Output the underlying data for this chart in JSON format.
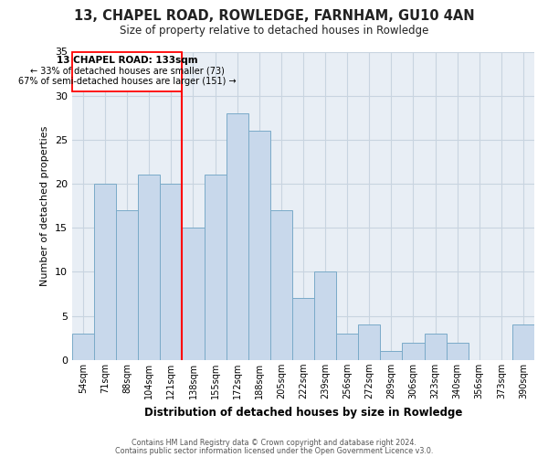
{
  "title": "13, CHAPEL ROAD, ROWLEDGE, FARNHAM, GU10 4AN",
  "subtitle": "Size of property relative to detached houses in Rowledge",
  "xlabel": "Distribution of detached houses by size in Rowledge",
  "ylabel": "Number of detached properties",
  "bar_color": "#c8d8eb",
  "bar_edge_color": "#7aaac8",
  "bins": [
    "54sqm",
    "71sqm",
    "88sqm",
    "104sqm",
    "121sqm",
    "138sqm",
    "155sqm",
    "172sqm",
    "188sqm",
    "205sqm",
    "222sqm",
    "239sqm",
    "256sqm",
    "272sqm",
    "289sqm",
    "306sqm",
    "323sqm",
    "340sqm",
    "356sqm",
    "373sqm",
    "390sqm"
  ],
  "counts": [
    3,
    20,
    17,
    21,
    20,
    15,
    21,
    28,
    26,
    17,
    7,
    10,
    3,
    4,
    1,
    2,
    3,
    2,
    0,
    0,
    4
  ],
  "ylim": [
    0,
    35
  ],
  "yticks": [
    0,
    5,
    10,
    15,
    20,
    25,
    30,
    35
  ],
  "red_line_bin_index": 5,
  "annotation_title": "13 CHAPEL ROAD: 133sqm",
  "annotation_line1": "← 33% of detached houses are smaller (73)",
  "annotation_line2": "67% of semi-detached houses are larger (151) →",
  "footer1": "Contains HM Land Registry data © Crown copyright and database right 2024.",
  "footer2": "Contains public sector information licensed under the Open Government Licence v3.0.",
  "background_color": "#ffffff",
  "axes_bg_color": "#e8eef5",
  "grid_color": "#c8d4e0"
}
